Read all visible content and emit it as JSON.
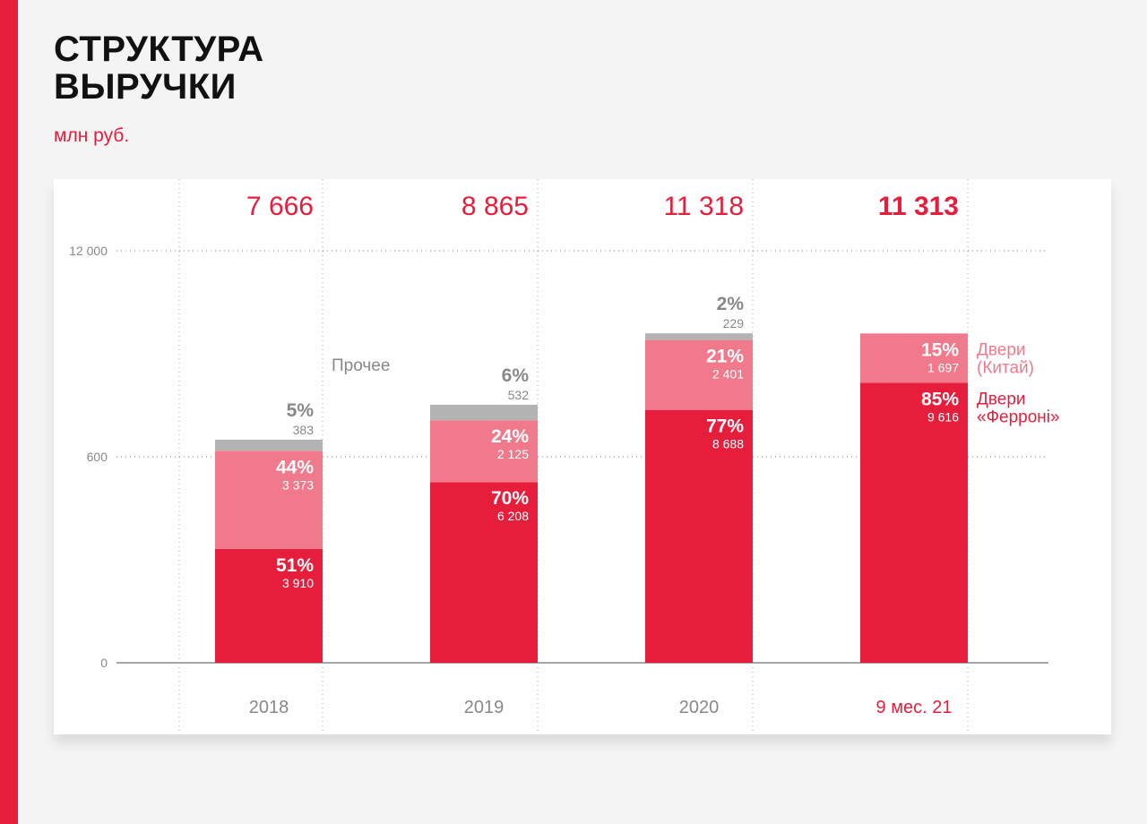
{
  "header": {
    "title_line1": "СТРУКТУРА",
    "title_line2": "ВЫРУЧКИ",
    "unit": "млн руб."
  },
  "colors": {
    "accent": "#e61e3c",
    "ferroni": "#e61e3c",
    "china": "#f07a8c",
    "other": "#b3b3b3",
    "background": "#f4f4f4",
    "panel": "#ffffff",
    "muted_text": "#888888"
  },
  "chart_data": {
    "type": "bar",
    "stacked": true,
    "title": "СТРУКТУРА ВЫРУЧКИ",
    "unit": "млн руб.",
    "categories": [
      "2018",
      "2019",
      "2020",
      "9 мес. 21"
    ],
    "totals": [
      "7 666",
      "8 865",
      "11 318",
      "11 313"
    ],
    "highlight_category": "9 мес. 21",
    "y_ticks": [
      "0",
      "600",
      "12 000"
    ],
    "grid": "dotted",
    "series": [
      {
        "name": "Двери «Ферроні»",
        "legend": [
          "Двери",
          "«Ферроні»"
        ],
        "color": "#e61e3c",
        "values": [
          3910,
          6208,
          8688,
          9616
        ],
        "value_labels": [
          "3 910",
          "6 208",
          "8 688",
          "9 616"
        ],
        "percents": [
          "51%",
          "70%",
          "77%",
          "85%"
        ]
      },
      {
        "name": "Двери (Китай)",
        "legend": [
          "Двери",
          "(Китай)"
        ],
        "color": "#f07a8c",
        "values": [
          3373,
          2125,
          2401,
          1697
        ],
        "value_labels": [
          "3 373",
          "2 125",
          "2 401",
          "1 697"
        ],
        "percents": [
          "44%",
          "24%",
          "21%",
          "15%"
        ]
      },
      {
        "name": "Прочее",
        "legend": [
          "Прочее"
        ],
        "color": "#b3b3b3",
        "values": [
          383,
          532,
          229,
          null
        ],
        "value_labels": [
          "383",
          "532",
          "229",
          null
        ],
        "percents": [
          "5%",
          "6%",
          "2%",
          null
        ]
      }
    ]
  }
}
